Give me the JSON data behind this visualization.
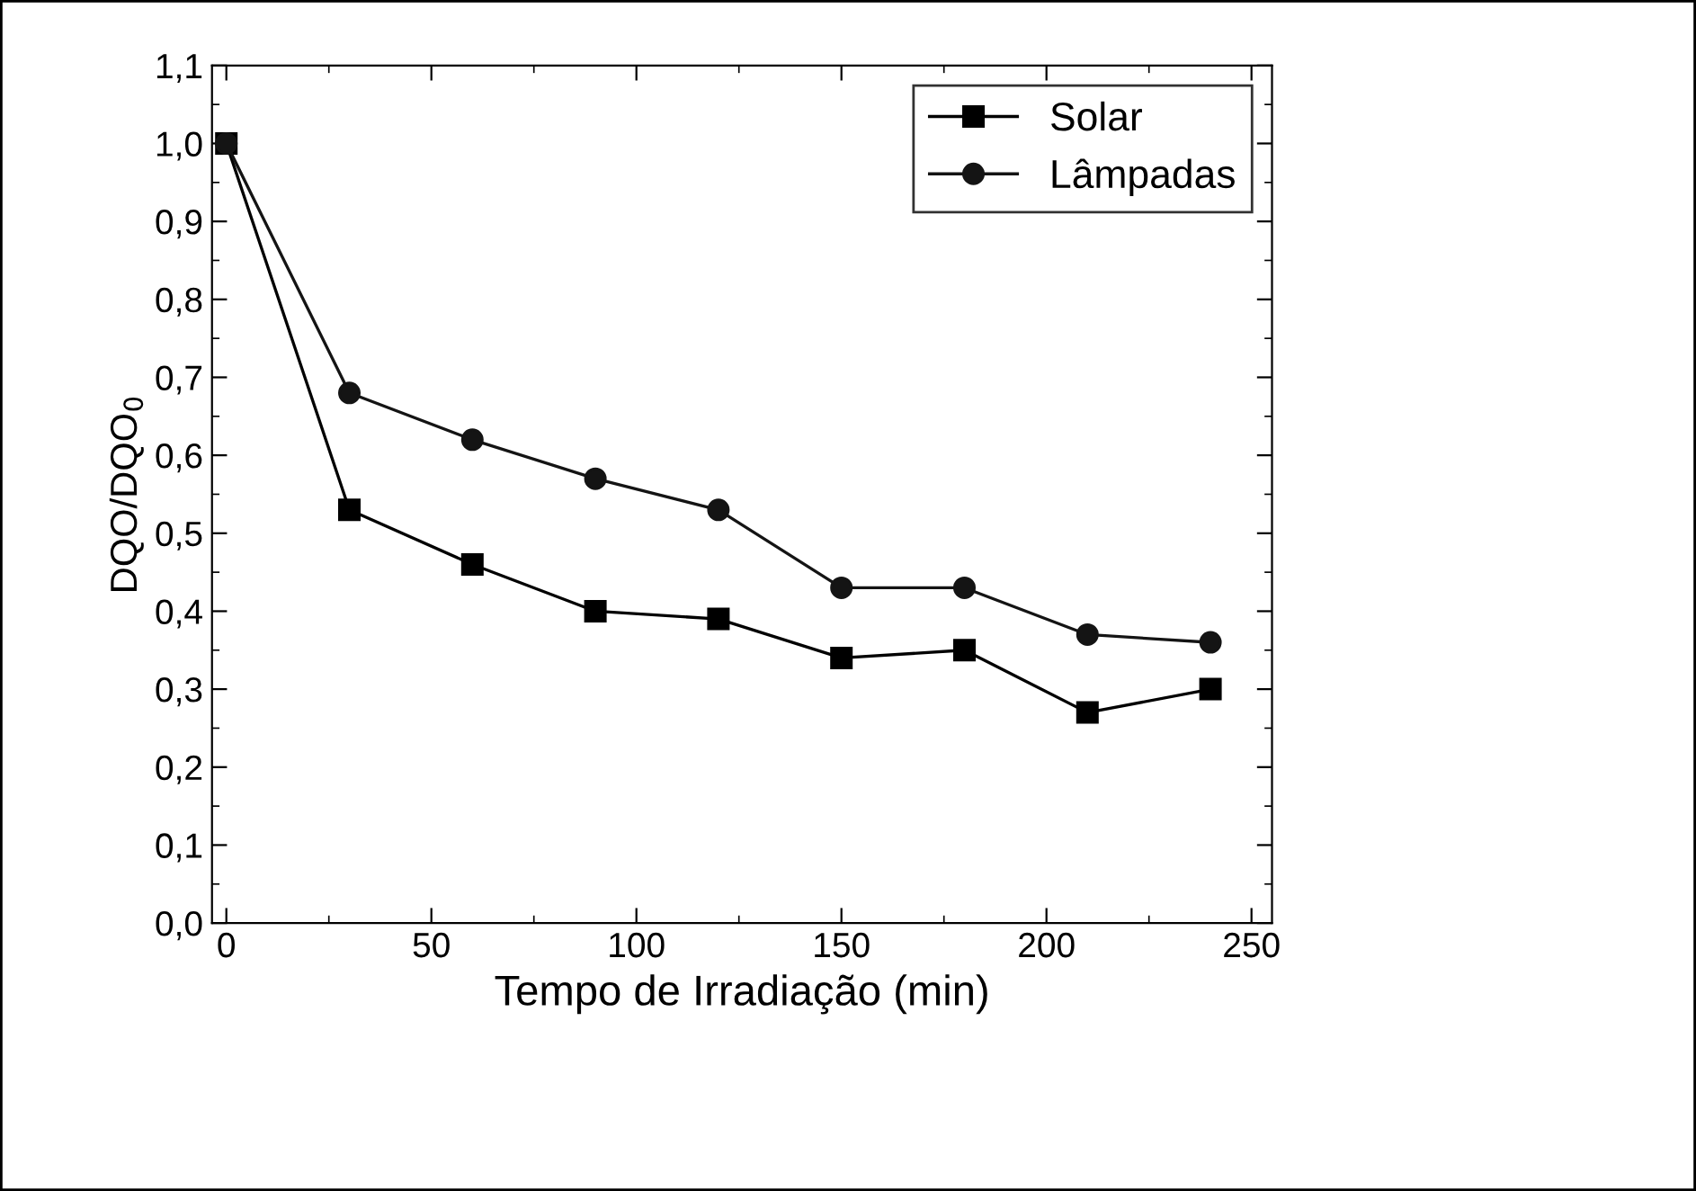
{
  "chart_data": {
    "type": "line",
    "xlabel": "Tempo de Irradiação (min)",
    "ylabel": "DQO/DQO$_{0}$",
    "x": [
      0,
      30,
      60,
      90,
      120,
      150,
      180,
      210,
      240
    ],
    "series": [
      {
        "name": "Solar",
        "color": "#000000",
        "marker": "square",
        "values": [
          1.0,
          0.53,
          0.46,
          0.4,
          0.39,
          0.34,
          0.35,
          0.27,
          0.3
        ]
      },
      {
        "name": "Lâmpadas",
        "color": "#141414",
        "marker": "circle",
        "values": [
          1.0,
          0.68,
          0.62,
          0.57,
          0.53,
          0.43,
          0.43,
          0.37,
          0.36
        ]
      }
    ],
    "xlim": [
      -3.5,
      255
    ],
    "xticks": [
      0,
      50,
      100,
      150,
      200,
      250
    ],
    "ylim": [
      0,
      1.1
    ],
    "yticks": [
      {
        "value": 0,
        "label": "0,0"
      },
      {
        "value": 0.1,
        "label": "0,1"
      },
      {
        "value": 0.2,
        "label": "0,2"
      },
      {
        "value": 0.3,
        "label": "0,3"
      },
      {
        "value": 0.4,
        "label": "0,4"
      },
      {
        "value": 0.5,
        "label": "0,5"
      },
      {
        "value": 0.6,
        "label": "0,6"
      },
      {
        "value": 0.7,
        "label": "0,7"
      },
      {
        "value": 0.8,
        "label": "0,8"
      },
      {
        "value": 0.9,
        "label": "0,9"
      },
      {
        "value": 1.0,
        "label": "1,0"
      },
      {
        "value": 1.1,
        "label": "1,1"
      }
    ],
    "grid": false,
    "legend": "top right",
    "line_style": "solid"
  }
}
